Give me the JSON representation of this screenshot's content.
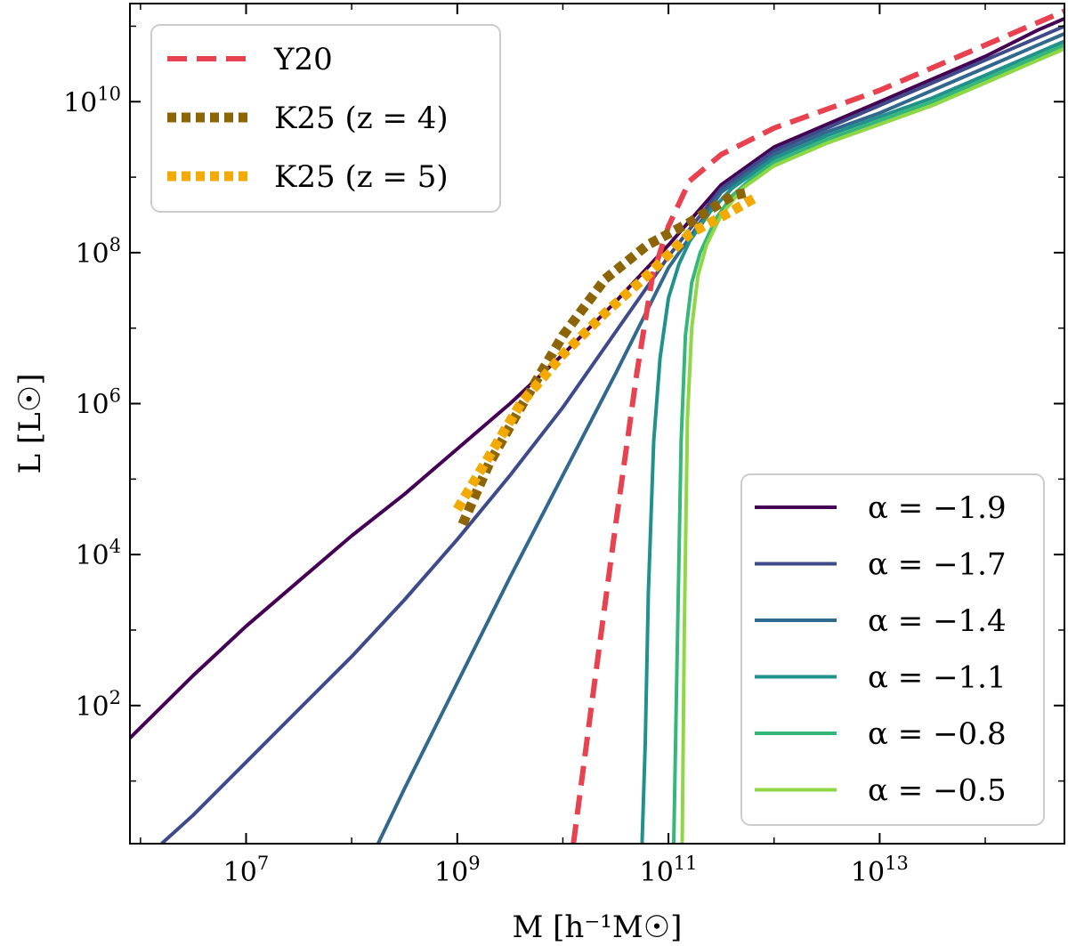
{
  "chart_data": {
    "type": "line",
    "title": "",
    "xlabel": "M [h⁻¹M☉]",
    "ylabel": "L [L☉]",
    "xscale": "log",
    "yscale": "log",
    "xlim_log10": [
      5.9,
      14.75
    ],
    "ylim_log10": [
      0.17,
      11.3
    ],
    "x_ticks": [
      {
        "base": "10",
        "exp": "7",
        "log10": 7
      },
      {
        "base": "10",
        "exp": "9",
        "log10": 9
      },
      {
        "base": "10",
        "exp": "11",
        "log10": 11
      },
      {
        "base": "10",
        "exp": "13",
        "log10": 13
      }
    ],
    "y_ticks": [
      {
        "base": "10",
        "exp": "2",
        "log10": 2
      },
      {
        "base": "10",
        "exp": "4",
        "log10": 4
      },
      {
        "base": "10",
        "exp": "6",
        "log10": 6
      },
      {
        "base": "10",
        "exp": "8",
        "log10": 8
      },
      {
        "base": "10",
        "exp": "10",
        "log10": 10
      }
    ],
    "legends": [
      {
        "position": "top-left",
        "entries": [
          "Y20",
          "K25 (z = 4)",
          "K25 (z = 5)"
        ]
      },
      {
        "position": "bottom-right",
        "entries": [
          "α = −1.9",
          "α = −1.7",
          "α = −1.4",
          "α = −1.1",
          "α = −0.8",
          "α = −0.5"
        ]
      }
    ],
    "series": [
      {
        "name": "Y20",
        "label": "Y20",
        "color": "#e8414f",
        "style": "dashed",
        "width": 6,
        "points": [
          [
            10.1,
            0.17
          ],
          [
            10.3,
            2.3
          ],
          [
            10.5,
            4.4
          ],
          [
            10.7,
            6.4
          ],
          [
            10.85,
            7.7
          ],
          [
            11.0,
            8.35
          ],
          [
            11.2,
            8.95
          ],
          [
            11.5,
            9.3
          ],
          [
            12.0,
            9.65
          ],
          [
            12.5,
            9.9
          ],
          [
            13.0,
            10.15
          ],
          [
            13.5,
            10.45
          ],
          [
            14.0,
            10.75
          ],
          [
            14.5,
            11.05
          ],
          [
            14.75,
            11.2
          ]
        ]
      },
      {
        "name": "K25 (z = 4)",
        "label": "K25 (z = 4)",
        "color": "#8b6508",
        "style": "dotted",
        "width": 11,
        "points": [
          [
            9.05,
            4.4
          ],
          [
            9.3,
            5.2
          ],
          [
            9.6,
            5.95
          ],
          [
            10.0,
            6.9
          ],
          [
            10.4,
            7.65
          ],
          [
            10.8,
            8.1
          ],
          [
            11.2,
            8.4
          ],
          [
            11.6,
            8.75
          ],
          [
            11.75,
            8.8
          ]
        ]
      },
      {
        "name": "K25 (z = 5)",
        "label": "K25 (z = 5)",
        "color": "#f2a900",
        "style": "dotted",
        "width": 11,
        "points": [
          [
            9.0,
            4.6
          ],
          [
            9.3,
            5.3
          ],
          [
            9.6,
            6.0
          ],
          [
            10.0,
            6.65
          ],
          [
            10.4,
            7.2
          ],
          [
            10.8,
            7.7
          ],
          [
            11.2,
            8.25
          ],
          [
            11.6,
            8.55
          ],
          [
            11.85,
            8.75
          ]
        ]
      },
      {
        "name": "alpha_-1.9",
        "label": "α = −1.9",
        "color": "#440154",
        "style": "solid",
        "width": 4,
        "points": [
          [
            5.9,
            1.57
          ],
          [
            6.5,
            2.4
          ],
          [
            7.0,
            3.05
          ],
          [
            7.5,
            3.65
          ],
          [
            8.0,
            4.25
          ],
          [
            8.5,
            4.8
          ],
          [
            9.0,
            5.4
          ],
          [
            9.5,
            6.0
          ],
          [
            10.0,
            6.65
          ],
          [
            10.5,
            7.35
          ],
          [
            11.0,
            8.1
          ],
          [
            11.5,
            8.9
          ],
          [
            12.0,
            9.4
          ],
          [
            12.5,
            9.7
          ],
          [
            13.0,
            10.0
          ],
          [
            13.5,
            10.3
          ],
          [
            14.0,
            10.6
          ],
          [
            14.5,
            10.95
          ],
          [
            14.75,
            11.1
          ]
        ]
      },
      {
        "name": "alpha_-1.7",
        "label": "α = −1.7",
        "color": "#3e4a89",
        "style": "solid",
        "width": 4,
        "points": [
          [
            6.2,
            0.17
          ],
          [
            6.5,
            0.55
          ],
          [
            7.0,
            1.25
          ],
          [
            7.5,
            1.95
          ],
          [
            8.0,
            2.65
          ],
          [
            8.5,
            3.4
          ],
          [
            9.0,
            4.2
          ],
          [
            9.5,
            5.05
          ],
          [
            10.0,
            5.95
          ],
          [
            10.5,
            6.95
          ],
          [
            11.0,
            7.95
          ],
          [
            11.5,
            8.85
          ],
          [
            12.0,
            9.35
          ],
          [
            12.5,
            9.65
          ],
          [
            13.0,
            9.95
          ],
          [
            13.5,
            10.25
          ],
          [
            14.0,
            10.55
          ],
          [
            14.5,
            10.85
          ],
          [
            14.75,
            11.0
          ]
        ]
      },
      {
        "name": "alpha_-1.4",
        "label": "α = −1.4",
        "color": "#31688e",
        "style": "solid",
        "width": 4,
        "points": [
          [
            8.25,
            0.17
          ],
          [
            8.5,
            0.9
          ],
          [
            9.0,
            2.3
          ],
          [
            9.5,
            3.7
          ],
          [
            10.0,
            5.05
          ],
          [
            10.5,
            6.4
          ],
          [
            11.0,
            7.8
          ],
          [
            11.5,
            8.8
          ],
          [
            12.0,
            9.3
          ],
          [
            12.5,
            9.6
          ],
          [
            13.0,
            9.85
          ],
          [
            13.5,
            10.15
          ],
          [
            14.0,
            10.45
          ],
          [
            14.5,
            10.75
          ],
          [
            14.75,
            10.9
          ]
        ]
      },
      {
        "name": "alpha_-1.1",
        "label": "α = −1.1",
        "color": "#21918c",
        "style": "solid",
        "width": 4,
        "points": [
          [
            10.75,
            0.17
          ],
          [
            10.78,
            1.5
          ],
          [
            10.81,
            3.5
          ],
          [
            10.86,
            5.5
          ],
          [
            10.92,
            6.6
          ],
          [
            11.0,
            7.4
          ],
          [
            11.1,
            7.85
          ],
          [
            11.2,
            8.15
          ],
          [
            11.4,
            8.55
          ],
          [
            11.6,
            8.85
          ],
          [
            11.8,
            9.05
          ],
          [
            12.0,
            9.25
          ],
          [
            12.5,
            9.55
          ],
          [
            13.0,
            9.8
          ],
          [
            13.5,
            10.05
          ],
          [
            14.0,
            10.35
          ],
          [
            14.5,
            10.65
          ],
          [
            14.75,
            10.8
          ]
        ]
      },
      {
        "name": "alpha_-0.8",
        "label": "α = −0.8",
        "color": "#35b779",
        "style": "solid",
        "width": 4,
        "points": [
          [
            11.05,
            0.17
          ],
          [
            11.08,
            2.5
          ],
          [
            11.12,
            5.5
          ],
          [
            11.16,
            6.9
          ],
          [
            11.22,
            7.6
          ],
          [
            11.3,
            8.0
          ],
          [
            11.45,
            8.45
          ],
          [
            11.6,
            8.75
          ],
          [
            11.8,
            9.0
          ],
          [
            12.0,
            9.2
          ],
          [
            12.5,
            9.5
          ],
          [
            13.0,
            9.75
          ],
          [
            13.5,
            10.0
          ],
          [
            14.0,
            10.3
          ],
          [
            14.5,
            10.6
          ],
          [
            14.75,
            10.75
          ]
        ]
      },
      {
        "name": "alpha_-0.5",
        "label": "α = −0.5",
        "color": "#8fd744",
        "style": "solid",
        "width": 4,
        "points": [
          [
            11.13,
            0.17
          ],
          [
            11.15,
            3.0
          ],
          [
            11.18,
            5.8
          ],
          [
            11.22,
            7.0
          ],
          [
            11.28,
            7.7
          ],
          [
            11.36,
            8.1
          ],
          [
            11.5,
            8.5
          ],
          [
            11.7,
            8.85
          ],
          [
            12.0,
            9.15
          ],
          [
            12.5,
            9.45
          ],
          [
            13.0,
            9.7
          ],
          [
            13.5,
            9.95
          ],
          [
            14.0,
            10.25
          ],
          [
            14.5,
            10.55
          ],
          [
            14.75,
            10.7
          ]
        ]
      }
    ]
  }
}
